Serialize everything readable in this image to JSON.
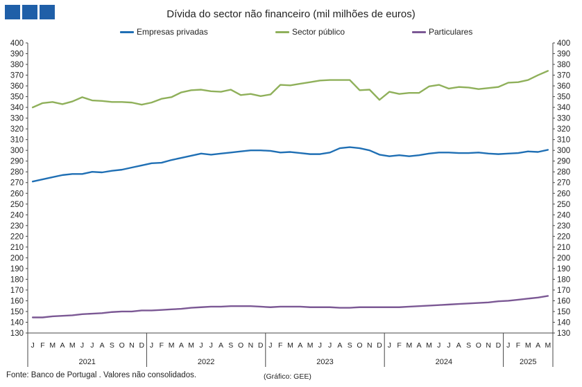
{
  "header": {
    "title": "Dívida do sector não financeiro (mil milhões de euros)",
    "logo_color": "#1f5fa8"
  },
  "footer": {
    "source": "Fonte: Banco de Portugal . Valores não consolidados.",
    "credit": "(Gráfico: GEE)"
  },
  "chart_data": {
    "type": "line",
    "title": "Dívida do sector não financeiro (mil milhões de euros)",
    "ylim": [
      130,
      400
    ],
    "ytick_step": 10,
    "y_axes": "left-and-right",
    "grid": false,
    "legend_position": "top",
    "month_labels": [
      "J",
      "F",
      "M",
      "A",
      "M",
      "J",
      "J",
      "A",
      "S",
      "O",
      "N",
      "D",
      "J",
      "F",
      "M",
      "A",
      "M",
      "J",
      "J",
      "A",
      "S",
      "O",
      "N",
      "D",
      "J",
      "F",
      "M",
      "A",
      "M",
      "J",
      "J",
      "A",
      "S",
      "O",
      "N",
      "D",
      "J",
      "F",
      "M",
      "A",
      "M",
      "J",
      "J",
      "A",
      "S",
      "O",
      "N",
      "D",
      "J",
      "F",
      "M",
      "A",
      "M"
    ],
    "years": [
      {
        "label": "2021",
        "months": 12
      },
      {
        "label": "2022",
        "months": 12
      },
      {
        "label": "2023",
        "months": 12
      },
      {
        "label": "2024",
        "months": 12
      },
      {
        "label": "2025",
        "months": 5
      }
    ],
    "series": [
      {
        "name": "Empresas privadas",
        "color": "#1f6fb4",
        "values": [
          271,
          273,
          275,
          277,
          278,
          278,
          280,
          279.5,
          281,
          282,
          284,
          286,
          288,
          288.5,
          291,
          293,
          295,
          297,
          296,
          297,
          298,
          299,
          300,
          300,
          299.5,
          298,
          298.5,
          297.5,
          296.5,
          296.5,
          298,
          302,
          303,
          302,
          300,
          296,
          294.5,
          295.5,
          294.5,
          295.5,
          297,
          298,
          298,
          297.5,
          297.5,
          298,
          297,
          296.5,
          297,
          297.5,
          299,
          298.5,
          300.5
        ]
      },
      {
        "name": "Sector público",
        "color": "#8fb05a",
        "values": [
          340,
          344,
          345,
          343,
          345.5,
          349.5,
          346.5,
          346,
          345,
          345,
          344.5,
          342.5,
          344.5,
          348,
          349.5,
          354,
          356,
          356.5,
          355,
          354.5,
          356.5,
          351.5,
          352.5,
          350.5,
          352,
          361,
          360.5,
          362,
          363.5,
          365,
          365.5,
          365.5,
          365.5,
          356,
          356.5,
          347,
          354.5,
          352.5,
          353.5,
          353.5,
          359.5,
          361,
          357.5,
          359,
          358.5,
          357,
          358,
          359,
          363,
          363.5,
          365.5,
          370,
          374
        ]
      },
      {
        "name": "Particulares",
        "color": "#7b5894",
        "values": [
          144.5,
          144.5,
          145.5,
          146,
          146.5,
          147.5,
          148,
          148.5,
          149.5,
          150,
          150,
          151,
          151,
          151.5,
          152,
          152.5,
          153.5,
          154,
          154.5,
          154.5,
          155,
          155,
          155,
          154.5,
          154,
          154.5,
          154.5,
          154.5,
          154,
          154,
          154,
          153.5,
          153.5,
          154,
          154,
          154,
          154,
          154,
          154.5,
          155,
          155.5,
          156,
          156.5,
          157,
          157.5,
          158,
          158.5,
          159.5,
          160,
          161,
          162,
          163,
          164.5
        ]
      }
    ]
  }
}
